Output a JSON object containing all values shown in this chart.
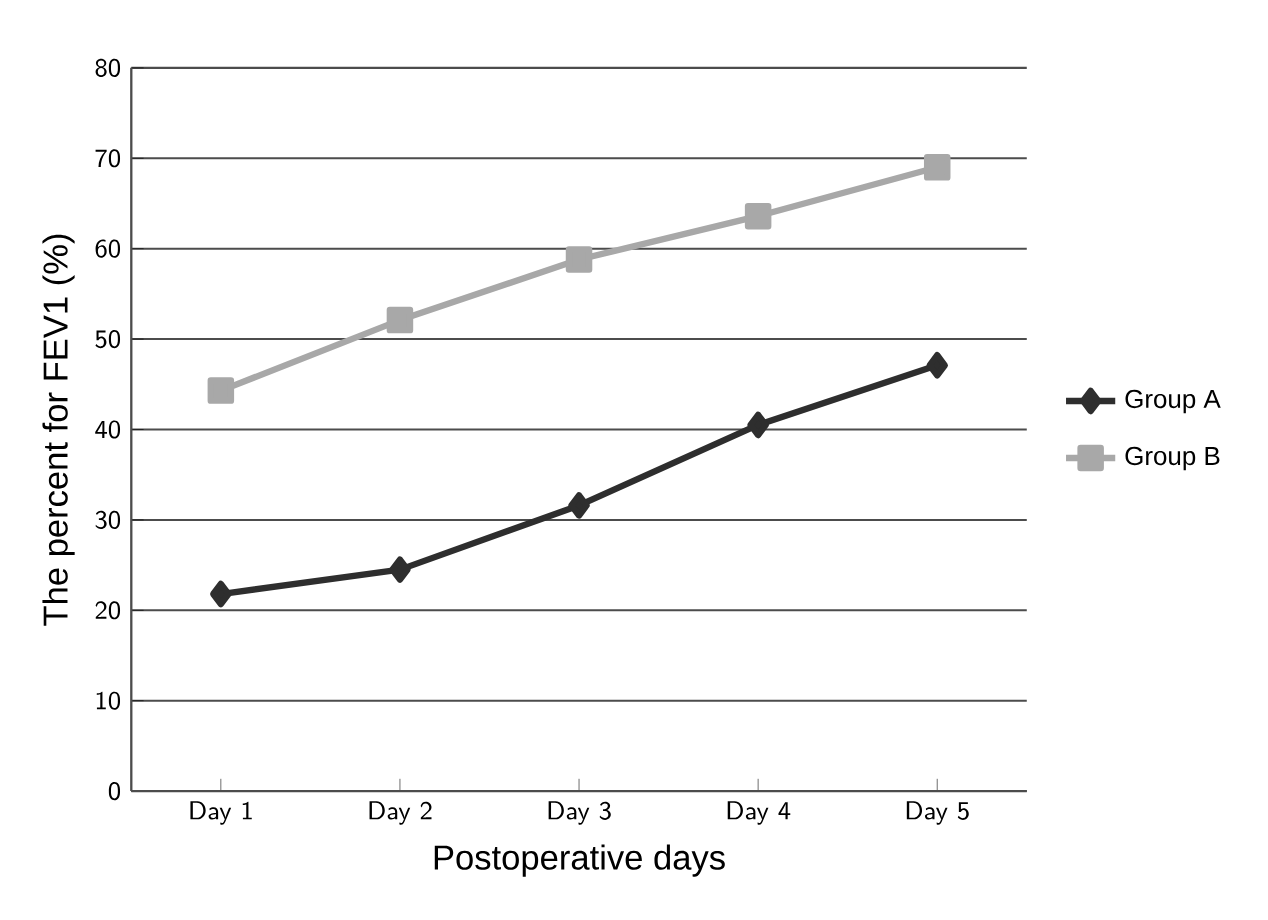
{
  "chart_data": {
    "type": "line",
    "xlabel": "Postoperative days",
    "ylabel": "The percent for FEV1 (%)",
    "categories": [
      "Day 1",
      "Day 2",
      "Day 3",
      "Day 4",
      "Day 5"
    ],
    "series": [
      {
        "name": "Group A",
        "color": "#2e2e2e",
        "marker": "diamond",
        "values": [
          21.8,
          24.5,
          31.6,
          40.5,
          47.1
        ]
      },
      {
        "name": "Group B",
        "color": "#a8a8a8",
        "marker": "square",
        "values": [
          44.3,
          52.1,
          58.8,
          63.6,
          69.0
        ]
      }
    ],
    "ylim": [
      0,
      80
    ],
    "yticks": [
      0,
      10,
      20,
      30,
      40,
      50,
      60,
      70,
      80
    ],
    "grid": "y",
    "legend": "right"
  }
}
